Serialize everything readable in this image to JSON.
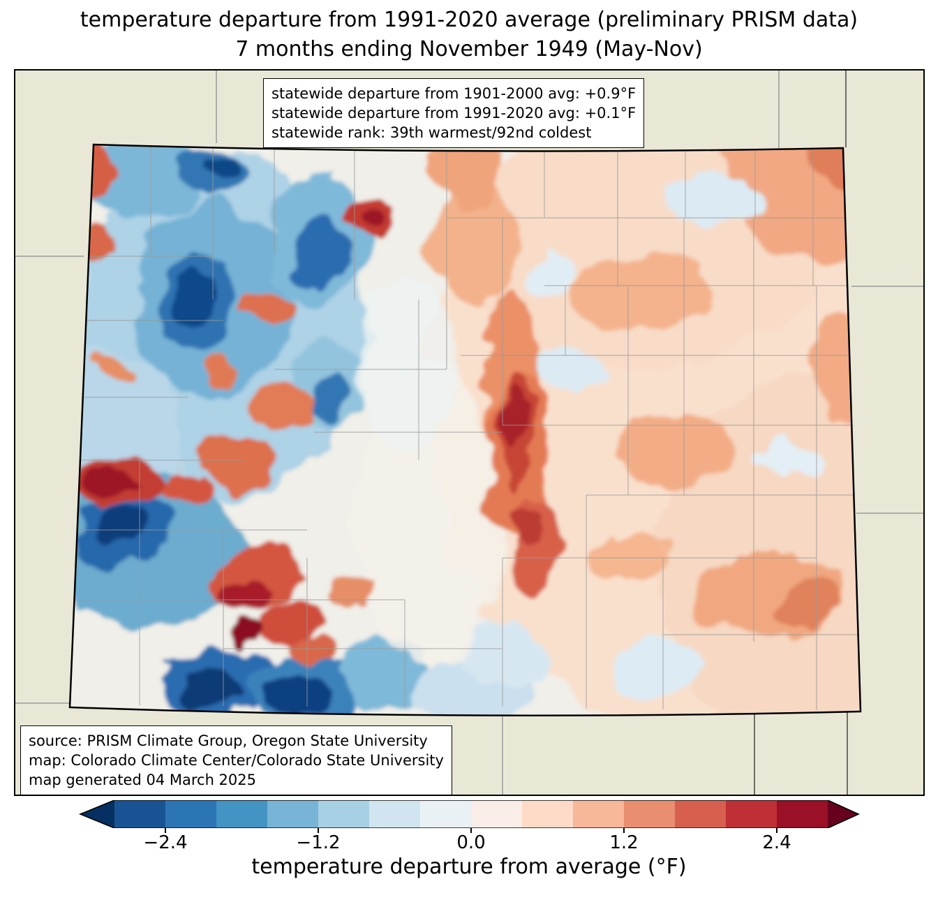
{
  "figure": {
    "title_line1": "temperature departure from 1991-2020 average (preliminary PRISM data)",
    "title_line2": "7 months ending November 1949 (May-Nov)"
  },
  "stats_box": {
    "line1": "statewide departure from 1901-2000 avg: +0.9°F",
    "line2": "statewide departure from 1991-2020 avg: +0.1°F",
    "line3": "statewide rank: 39th warmest/92nd coldest"
  },
  "source_box": {
    "line1": "source: PRISM Climate Group, Oregon State University",
    "line2": "map: Colorado Climate Center/Colorado State University",
    "line3": "map generated 04 March 2025"
  },
  "colorbar": {
    "label": "temperature departure from average (°F)",
    "ticks": [
      {
        "value": -2.4,
        "label": "−2.4"
      },
      {
        "value": -1.2,
        "label": "−1.2"
      },
      {
        "value": 0.0,
        "label": "0.0"
      },
      {
        "value": 1.2,
        "label": "1.2"
      },
      {
        "value": 2.4,
        "label": "2.4"
      }
    ],
    "range_min": -2.8,
    "range_max": 2.8,
    "under_arrow_color": "#053061",
    "over_arrow_color": "#67001f",
    "segment_colors": [
      "#185493",
      "#2c75b4",
      "#4393c3",
      "#78b4d5",
      "#a7d0e4",
      "#d1e5f0",
      "#eaf1f5",
      "#f9eee7",
      "#fddbc7",
      "#f7b799",
      "#ea8e70",
      "#d6604d",
      "#be3036",
      "#991027"
    ]
  },
  "map": {
    "region": "Colorado",
    "outside_fill": "#e9e8d6",
    "county_line_color": "#999999",
    "state_border_color": "#000000"
  }
}
